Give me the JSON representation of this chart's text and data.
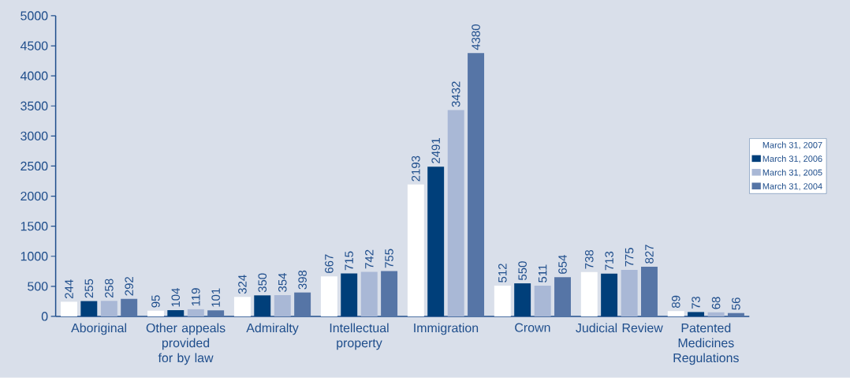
{
  "chart_data": {
    "type": "bar",
    "categories": [
      "Aboriginal",
      "Other appeals provided for by law",
      "Admiralty",
      "Intellectual property",
      "Immigration",
      "Crown",
      "Judicial Review",
      "Patented Medicines Regulations"
    ],
    "series": [
      {
        "name": "March 31, 2007",
        "color": "#ffffff",
        "values": [
          244,
          95,
          324,
          667,
          2193,
          512,
          738,
          89
        ]
      },
      {
        "name": "March 31, 2006",
        "color": "#003f7a",
        "values": [
          255,
          104,
          350,
          715,
          2491,
          550,
          713,
          73
        ]
      },
      {
        "name": "March 31, 2005",
        "color": "#a9b8d6",
        "values": [
          258,
          119,
          354,
          742,
          3432,
          511,
          775,
          68
        ]
      },
      {
        "name": "March 31, 2004",
        "color": "#5675a6",
        "values": [
          292,
          101,
          398,
          755,
          4380,
          654,
          827,
          56
        ]
      }
    ],
    "ylim": [
      0,
      5000
    ],
    "yticks": [
      0,
      500,
      1000,
      1500,
      2000,
      2500,
      3000,
      3500,
      4000,
      4500,
      5000
    ],
    "data_labels": true,
    "legend": "right",
    "grid": false
  }
}
